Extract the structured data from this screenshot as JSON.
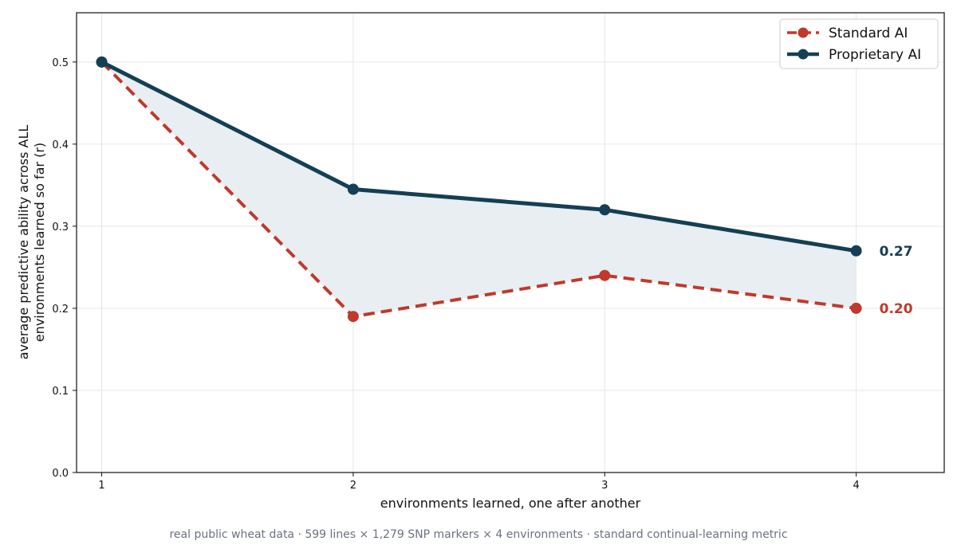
{
  "chart_data": {
    "type": "line",
    "x": [
      1,
      2,
      3,
      4
    ],
    "xlabel": "environments learned, one after another",
    "ylabel_lines": [
      "average predictive ability across ALL",
      "environments learned so far   (r)"
    ],
    "xlim": [
      0.9,
      4.35
    ],
    "ylim": [
      0,
      0.56
    ],
    "x_ticks": [
      "1",
      "2",
      "3",
      "4"
    ],
    "y_ticks": [
      "0.0",
      "0.1",
      "0.2",
      "0.3",
      "0.4",
      "0.5"
    ],
    "y_tick_values": [
      0,
      0.1,
      0.2,
      0.3,
      0.4,
      0.5
    ],
    "grid": true,
    "legend_position": "top-right",
    "series": [
      {
        "name": "Standard AI",
        "values": [
          0.5,
          0.19,
          0.24,
          0.2
        ],
        "color": "#c0392b",
        "style": "dashed",
        "end_label": "0.20"
      },
      {
        "name": "Proprietary AI",
        "values": [
          0.5,
          0.345,
          0.32,
          0.27
        ],
        "color": "#143f54",
        "style": "solid",
        "end_label": "0.27"
      }
    ],
    "fill_between_color": "#e8eef1",
    "footer": "real public wheat data  ·  599 lines × 1,279 SNP markers × 4 environments  ·  standard continual-learning metric"
  }
}
